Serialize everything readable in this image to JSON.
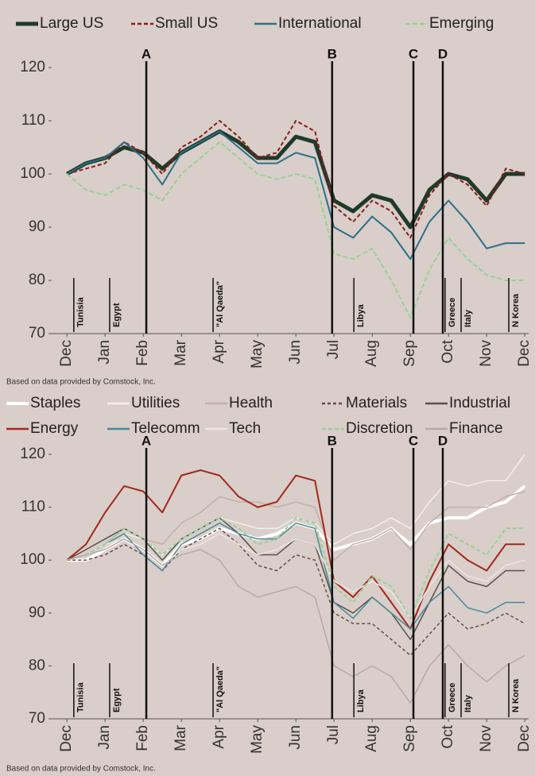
{
  "chart_data": [
    {
      "type": "line",
      "source": "Based on data provided by Comstock, Inc.",
      "x": [
        0,
        0.5,
        1,
        1.5,
        2,
        2.5,
        3,
        3.5,
        4,
        4.5,
        5,
        5.5,
        6,
        6.5,
        7,
        7.5,
        8,
        8.5,
        9,
        9.5,
        10,
        10.5,
        11,
        11.5,
        12
      ],
      "xlim": [
        -0.4,
        12.1
      ],
      "xticks": [
        {
          "value": 0,
          "label": "Dec"
        },
        {
          "value": 1,
          "label": "Jan"
        },
        {
          "value": 2,
          "label": "Feb"
        },
        {
          "value": 3,
          "label": "Mar"
        },
        {
          "value": 4,
          "label": "Apr"
        },
        {
          "value": 5,
          "label": "May"
        },
        {
          "value": 6,
          "label": "Jun"
        },
        {
          "value": 7,
          "label": "Jul"
        },
        {
          "value": 8,
          "label": "Aug"
        },
        {
          "value": 9,
          "label": "Sep"
        },
        {
          "value": 10,
          "label": "Oct"
        },
        {
          "value": 11,
          "label": "Nov"
        },
        {
          "value": 12,
          "label": "Dec"
        }
      ],
      "ylim": [
        70,
        120
      ],
      "yticks": [
        70,
        80,
        90,
        100,
        110,
        120
      ],
      "events": [
        {
          "label": "A",
          "x": 2.08
        },
        {
          "label": "B",
          "x": 6.95
        },
        {
          "label": "C",
          "x": 9.08
        },
        {
          "label": "D",
          "x": 9.85
        }
      ],
      "annotations": [
        {
          "label": "Tunisia",
          "x": 0.18
        },
        {
          "label": "Egypt",
          "x": 1.12
        },
        {
          "label": "\"Al Qaeda\"",
          "x": 3.83
        },
        {
          "label": "Libya",
          "x": 7.52
        },
        {
          "label": "Greece",
          "x": 9.91
        },
        {
          "label": "Italy",
          "x": 10.33
        },
        {
          "label": "N Korea",
          "x": 11.58
        }
      ],
      "series": [
        {
          "name": "Large US",
          "color": "#1f3a2a",
          "width": 5,
          "dash": "",
          "values": [
            100,
            102,
            103,
            105,
            104,
            101,
            104,
            106,
            108,
            106,
            103,
            103,
            107,
            106,
            95,
            93,
            96,
            95,
            90,
            97,
            100,
            99,
            95,
            100,
            100
          ]
        },
        {
          "name": "Small US",
          "color": "#8b1c17",
          "width": 2,
          "dash": "5 3",
          "values": [
            100,
            101,
            102,
            106,
            104,
            100,
            105,
            107,
            110,
            107,
            103,
            104,
            110,
            108,
            94,
            91,
            95,
            93,
            88,
            96,
            100,
            98,
            94,
            101,
            100
          ]
        },
        {
          "name": "International",
          "color": "#2a7088",
          "width": 2,
          "dash": "",
          "values": [
            100,
            102,
            103,
            106,
            103,
            98,
            104,
            106,
            108,
            105,
            102,
            102,
            104,
            103,
            90,
            88,
            92,
            89,
            84,
            91,
            95,
            91,
            86,
            87,
            87
          ]
        },
        {
          "name": "Emerging",
          "color": "#94d494",
          "width": 2,
          "dash": "6 3",
          "values": [
            100,
            97,
            96,
            98,
            97,
            95,
            100,
            103,
            106,
            103,
            100,
            99,
            100,
            99,
            85,
            84,
            86,
            80,
            73,
            82,
            88,
            84,
            81,
            80,
            80
          ]
        }
      ]
    },
    {
      "type": "line",
      "source": "Based on data provided by Comstock, Inc.",
      "x": [
        0,
        0.5,
        1,
        1.5,
        2,
        2.5,
        3,
        3.5,
        4,
        4.5,
        5,
        5.5,
        6,
        6.5,
        7,
        7.5,
        8,
        8.5,
        9,
        9.5,
        10,
        10.5,
        11,
        11.5,
        12
      ],
      "xlim": [
        -0.4,
        12.1
      ],
      "xticks": [
        {
          "value": 0,
          "label": "Dec"
        },
        {
          "value": 1,
          "label": "Jan"
        },
        {
          "value": 2,
          "label": "Feb"
        },
        {
          "value": 3,
          "label": "Mar"
        },
        {
          "value": 4,
          "label": "Apr"
        },
        {
          "value": 5,
          "label": "May"
        },
        {
          "value": 6,
          "label": "Jun"
        },
        {
          "value": 7,
          "label": "Jul"
        },
        {
          "value": 8,
          "label": "Aug"
        },
        {
          "value": 9,
          "label": "Sep"
        },
        {
          "value": 10,
          "label": "Oct"
        },
        {
          "value": 11,
          "label": "Nov"
        },
        {
          "value": 12,
          "label": "Dec"
        }
      ],
      "ylim": [
        70,
        120
      ],
      "yticks": [
        70,
        80,
        90,
        100,
        110,
        120
      ],
      "events": [
        {
          "label": "A",
          "x": 2.08
        },
        {
          "label": "B",
          "x": 6.95
        },
        {
          "label": "C",
          "x": 9.08
        },
        {
          "label": "D",
          "x": 9.85
        }
      ],
      "annotations": [
        {
          "label": "Tunisia",
          "x": 0.18
        },
        {
          "label": "Egypt",
          "x": 1.12
        },
        {
          "label": "\"Al Qaeda\"",
          "x": 3.83
        },
        {
          "label": "Libya",
          "x": 7.52
        },
        {
          "label": "Greece",
          "x": 9.91
        },
        {
          "label": "Italy",
          "x": 10.33
        },
        {
          "label": "N Korea",
          "x": 11.58
        }
      ],
      "series": [
        {
          "name": "Staples",
          "color": "#ffffff",
          "width": 4,
          "dash": "",
          "values": [
            100,
            100,
            102,
            104,
            102,
            99,
            103,
            104,
            106,
            105,
            104,
            105,
            107,
            106,
            102,
            103,
            104,
            106,
            103,
            107,
            108,
            108,
            110,
            111,
            114
          ]
        },
        {
          "name": "Utilities",
          "color": "#f4eeea",
          "width": 1.5,
          "dash": "",
          "values": [
            100,
            101,
            103,
            105,
            104,
            101,
            104,
            106,
            108,
            107,
            106,
            106,
            108,
            107,
            103,
            105,
            106,
            108,
            106,
            111,
            115,
            114,
            115,
            115,
            120
          ]
        },
        {
          "name": "Health",
          "color": "#c4afad",
          "width": 1.5,
          "dash": "",
          "values": [
            100,
            101,
            103,
            106,
            104,
            103,
            107,
            109,
            112,
            111,
            111,
            110,
            111,
            110,
            100,
            103,
            104,
            106,
            102,
            107,
            110,
            110,
            110,
            112,
            113
          ]
        },
        {
          "name": "Materials",
          "color": "#6a4a48",
          "width": 1.5,
          "dash": "4 3",
          "values": [
            100,
            100,
            101,
            103,
            101,
            98,
            102,
            104,
            106,
            103,
            99,
            98,
            101,
            100,
            90,
            88,
            88,
            85,
            82,
            86,
            90,
            87,
            88,
            90,
            88
          ]
        },
        {
          "name": "Industrial",
          "color": "#5a504e",
          "width": 1.5,
          "dash": "",
          "values": [
            100,
            102,
            104,
            106,
            104,
            100,
            104,
            106,
            108,
            105,
            101,
            101,
            104,
            103,
            92,
            90,
            93,
            90,
            85,
            92,
            99,
            96,
            95,
            98,
            98
          ]
        },
        {
          "name": "Energy",
          "color": "#a3281a",
          "width": 2,
          "dash": "",
          "values": [
            100,
            103,
            109,
            114,
            113,
            109,
            116,
            117,
            116,
            112,
            110,
            111,
            116,
            115,
            96,
            93,
            97,
            92,
            87,
            96,
            103,
            100,
            98,
            103,
            103
          ]
        },
        {
          "name": "Telecomm",
          "color": "#4a8a9a",
          "width": 1.5,
          "dash": "",
          "values": [
            100,
            101,
            103,
            105,
            101,
            98,
            103,
            105,
            107,
            105,
            104,
            104,
            107,
            106,
            92,
            89,
            93,
            90,
            87,
            92,
            95,
            91,
            90,
            92,
            92
          ]
        },
        {
          "name": "Tech",
          "color": "#eee6e2",
          "width": 1.5,
          "dash": "",
          "values": [
            100,
            101,
            103,
            104,
            102,
            99,
            102,
            103,
            105,
            103,
            101,
            102,
            104,
            103,
            96,
            94,
            96,
            94,
            89,
            95,
            100,
            97,
            96,
            99,
            100
          ]
        },
        {
          "name": "Discretion",
          "color": "#98d298",
          "width": 2,
          "dash": "5 3",
          "values": [
            100,
            101,
            103,
            106,
            104,
            101,
            104,
            106,
            108,
            106,
            103,
            104,
            108,
            107,
            95,
            92,
            97,
            95,
            89,
            98,
            105,
            103,
            101,
            106,
            106
          ]
        },
        {
          "name": "Finance",
          "color": "#b4abaa",
          "width": 1.5,
          "dash": "",
          "values": [
            100,
            101,
            102,
            104,
            102,
            99,
            101,
            102,
            100,
            95,
            93,
            94,
            95,
            93,
            80,
            78,
            80,
            78,
            73,
            80,
            84,
            80,
            77,
            80,
            82
          ]
        }
      ]
    }
  ]
}
